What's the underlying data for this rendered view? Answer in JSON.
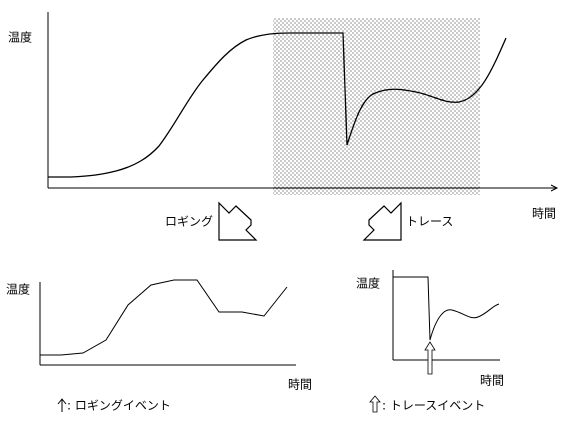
{
  "top_graph": {
    "y_label": "温度",
    "x_label": "時間"
  },
  "transition": {
    "logging": "ロギング",
    "trace": "トレース"
  },
  "logging_graph": {
    "y_label": "温度",
    "x_label": "時間",
    "legend": ": ロギングイベント"
  },
  "trace_graph": {
    "y_label": "温度",
    "x_label": "時間",
    "legend": ": トレースイベント"
  }
}
